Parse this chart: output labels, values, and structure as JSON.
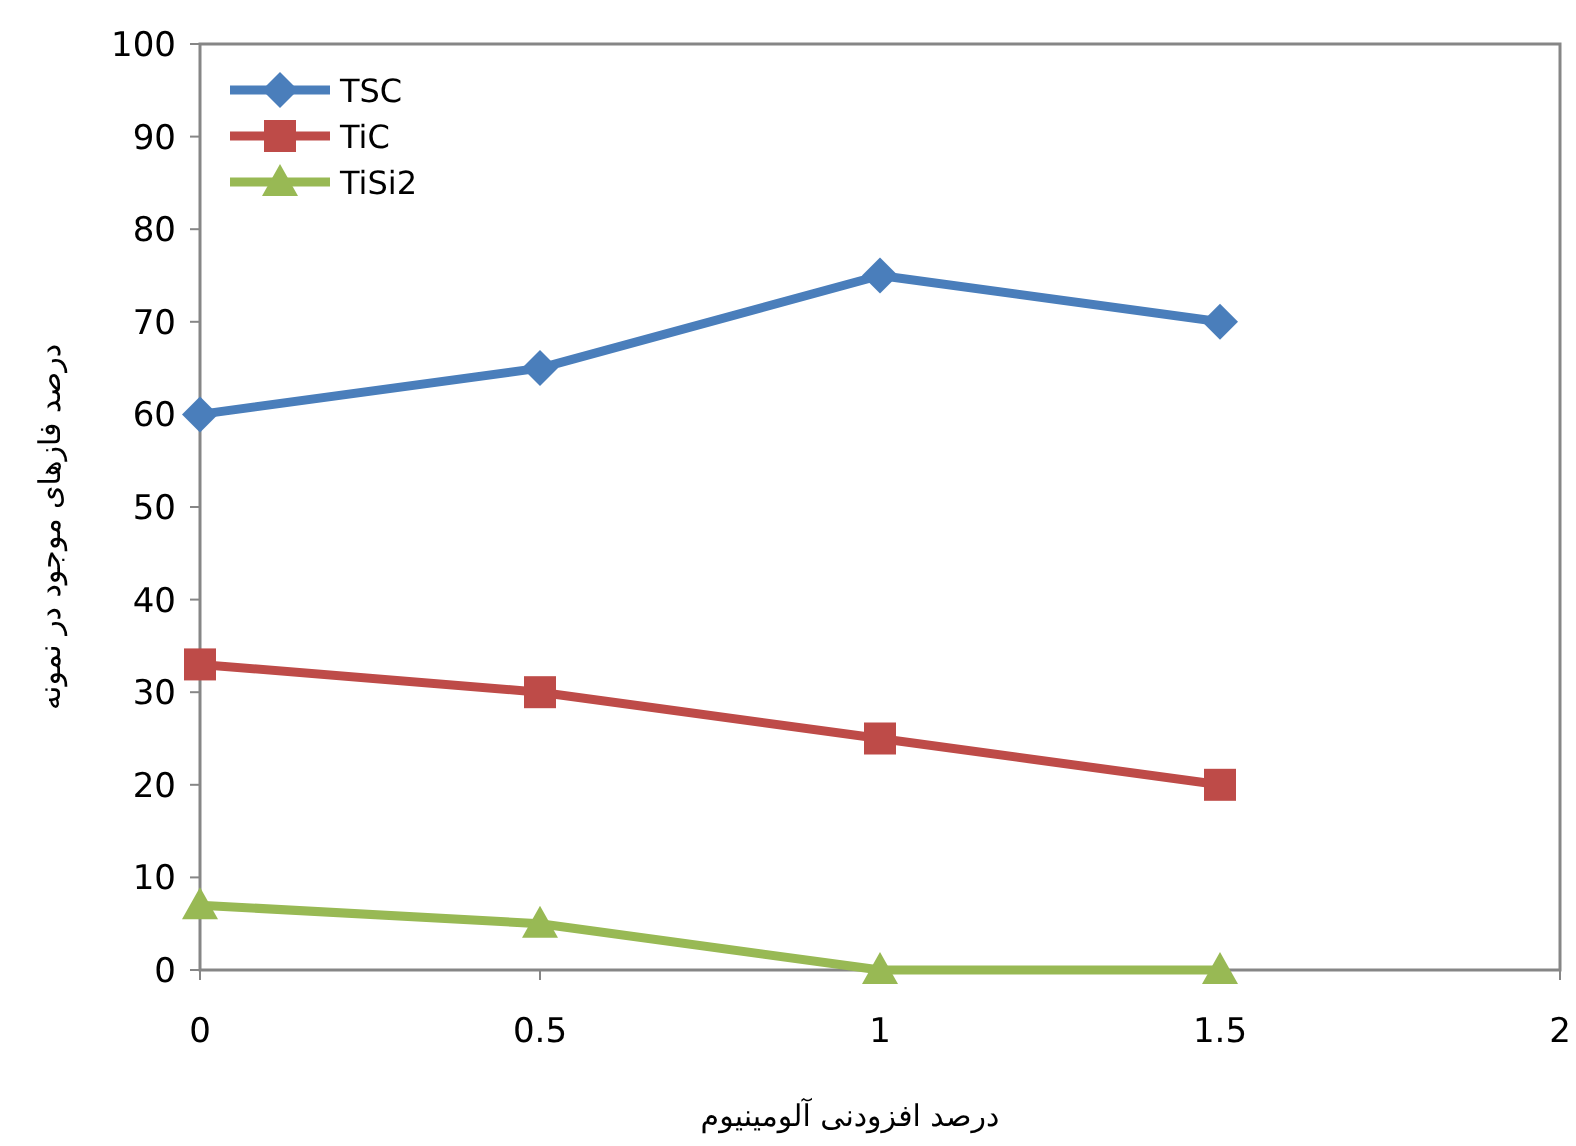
{
  "chart_data": {
    "type": "line",
    "xlabel": "درصد افزودنی آلومینیوم",
    "ylabel": "درصد فازهای موجود در نمونه",
    "x": [
      0,
      0.5,
      1,
      1.5
    ],
    "series": [
      {
        "name": "TSC",
        "color": "#4a7ebb",
        "marker": "diamond",
        "values": [
          60,
          65,
          75,
          70
        ]
      },
      {
        "name": "TiC",
        "color": "#be4b48",
        "marker": "square",
        "values": [
          33,
          30,
          25,
          20
        ]
      },
      {
        "name": "TiSi2",
        "color": "#98b954",
        "marker": "triangle",
        "values": [
          7,
          5,
          0,
          0
        ]
      }
    ],
    "xlim": [
      0,
      2
    ],
    "xticks": [
      0,
      0.5,
      1,
      1.5,
      2
    ],
    "ylim": [
      0,
      100
    ],
    "yticks": [
      0,
      10,
      20,
      30,
      40,
      50,
      60,
      70,
      80,
      90,
      100
    ],
    "grid": false,
    "legend": "top left",
    "line_style": "solid"
  }
}
